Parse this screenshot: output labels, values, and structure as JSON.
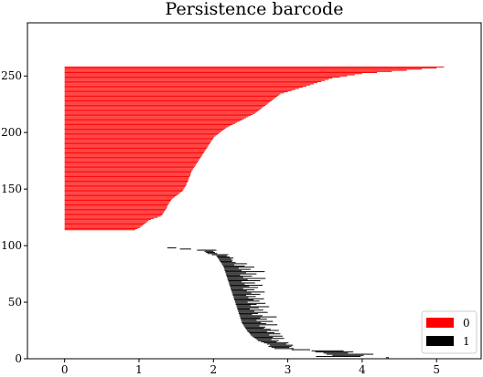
{
  "chart_data": {
    "type": "barcode",
    "title": "Persistence barcode",
    "xlabel": "",
    "ylabel": "",
    "xlim": [
      -0.5,
      5.6
    ],
    "ylim": [
      0,
      297
    ],
    "xticks": [
      "0",
      "1",
      "2",
      "3",
      "4",
      "5"
    ],
    "yticks": [
      "0",
      "50",
      "100",
      "150",
      "200",
      "250"
    ],
    "legend_position": "lower-right",
    "series": [
      {
        "name": "0",
        "color": "#ff0000",
        "start": 0,
        "index_start": 114,
        "deaths": [
          0.95,
          0.98,
          1.01,
          1.03,
          1.05,
          1.07,
          1.09,
          1.11,
          1.13,
          1.16,
          1.2,
          1.25,
          1.29,
          1.31,
          1.32,
          1.33,
          1.34,
          1.35,
          1.36,
          1.37,
          1.38,
          1.38,
          1.39,
          1.4,
          1.41,
          1.42,
          1.43,
          1.44,
          1.46,
          1.48,
          1.5,
          1.52,
          1.54,
          1.56,
          1.58,
          1.59,
          1.6,
          1.61,
          1.62,
          1.63,
          1.64,
          1.64,
          1.65,
          1.66,
          1.66,
          1.67,
          1.67,
          1.68,
          1.69,
          1.69,
          1.7,
          1.7,
          1.71,
          1.72,
          1.73,
          1.74,
          1.75,
          1.76,
          1.77,
          1.78,
          1.79,
          1.8,
          1.81,
          1.82,
          1.83,
          1.84,
          1.85,
          1.86,
          1.87,
          1.88,
          1.89,
          1.9,
          1.91,
          1.92,
          1.93,
          1.94,
          1.95,
          1.96,
          1.97,
          1.98,
          1.99,
          2.0,
          2.01,
          2.03,
          2.05,
          2.07,
          2.09,
          2.11,
          2.13,
          2.15,
          2.17,
          2.2,
          2.23,
          2.26,
          2.29,
          2.32,
          2.35,
          2.38,
          2.41,
          2.44,
          2.47,
          2.5,
          2.53,
          2.56,
          2.58,
          2.6,
          2.62,
          2.64,
          2.66,
          2.68,
          2.7,
          2.72,
          2.74,
          2.76,
          2.78,
          2.8,
          2.82,
          2.84,
          2.86,
          2.88,
          2.9,
          2.95,
          3.0,
          3.05,
          3.1,
          3.15,
          3.2,
          3.25,
          3.3,
          3.35,
          3.4,
          3.45,
          3.5,
          3.55,
          3.6,
          3.7,
          3.8,
          3.9,
          4.0,
          4.2,
          4.4,
          4.6,
          4.8,
          5.0,
          5.1
        ]
      },
      {
        "name": "1",
        "color": "#000000",
        "bars": [
          [
            4.32,
            4.36
          ],
          [
            3.38,
            3.98
          ],
          [
            3.6,
            4.02
          ],
          [
            3.52,
            4.15
          ],
          [
            3.48,
            3.81
          ],
          [
            3.37,
            3.88
          ],
          [
            3.32,
            3.75
          ],
          [
            3.05,
            3.3
          ],
          [
            2.82,
            3.08
          ],
          [
            2.78,
            3.02
          ],
          [
            2.74,
            3.05
          ],
          [
            2.76,
            3.07
          ],
          [
            2.72,
            2.98
          ],
          [
            2.68,
            3.01
          ],
          [
            2.64,
            2.85
          ],
          [
            2.6,
            2.88
          ],
          [
            2.58,
            2.78
          ],
          [
            2.56,
            2.95
          ],
          [
            2.54,
            2.8
          ],
          [
            2.52,
            2.93
          ],
          [
            2.5,
            2.75
          ],
          [
            2.49,
            2.9
          ],
          [
            2.48,
            2.82
          ],
          [
            2.46,
            2.72
          ],
          [
            2.45,
            2.88
          ],
          [
            2.44,
            2.77
          ],
          [
            2.43,
            2.68
          ],
          [
            2.42,
            2.7
          ],
          [
            2.41,
            2.62
          ],
          [
            2.4,
            2.86
          ],
          [
            2.39,
            2.71
          ],
          [
            2.38,
            2.64
          ],
          [
            2.38,
            2.8
          ],
          [
            2.37,
            2.58
          ],
          [
            2.37,
            2.72
          ],
          [
            2.36,
            2.63
          ],
          [
            2.36,
            2.85
          ],
          [
            2.35,
            2.66
          ],
          [
            2.35,
            2.52
          ],
          [
            2.34,
            2.6
          ],
          [
            2.34,
            2.73
          ],
          [
            2.33,
            2.55
          ],
          [
            2.33,
            2.67
          ],
          [
            2.32,
            2.49
          ],
          [
            2.32,
            2.61
          ],
          [
            2.31,
            2.75
          ],
          [
            2.31,
            2.5
          ],
          [
            2.3,
            2.58
          ],
          [
            2.3,
            2.7
          ],
          [
            2.29,
            2.46
          ],
          [
            2.29,
            2.62
          ],
          [
            2.28,
            2.54
          ],
          [
            2.28,
            2.68
          ],
          [
            2.27,
            2.47
          ],
          [
            2.27,
            2.57
          ],
          [
            2.26,
            2.44
          ],
          [
            2.26,
            2.63
          ],
          [
            2.25,
            2.51
          ],
          [
            2.25,
            2.69
          ],
          [
            2.24,
            2.45
          ],
          [
            2.24,
            2.55
          ],
          [
            2.23,
            2.4
          ],
          [
            2.23,
            2.6
          ],
          [
            2.22,
            2.48
          ],
          [
            2.22,
            2.66
          ],
          [
            2.21,
            2.42
          ],
          [
            2.21,
            2.56
          ],
          [
            2.2,
            2.38
          ],
          [
            2.2,
            2.63
          ],
          [
            2.19,
            2.46
          ],
          [
            2.19,
            2.7
          ],
          [
            2.18,
            2.4
          ],
          [
            2.18,
            2.52
          ],
          [
            2.17,
            2.36
          ],
          [
            2.17,
            2.58
          ],
          [
            2.16,
            2.44
          ],
          [
            2.16,
            2.69
          ],
          [
            2.15,
            2.38
          ],
          [
            2.15,
            2.5
          ],
          [
            2.14,
            2.34
          ],
          [
            2.14,
            2.55
          ],
          [
            2.13,
            2.42
          ],
          [
            2.12,
            2.28
          ],
          [
            2.11,
            2.45
          ],
          [
            2.1,
            2.3
          ],
          [
            2.09,
            2.25
          ],
          [
            2.08,
            2.26
          ],
          [
            2.07,
            2.24
          ],
          [
            2.06,
            2.27
          ],
          [
            2.05,
            2.22
          ],
          [
            2.04,
            2.18
          ],
          [
            1.98,
            2.2
          ],
          [
            1.92,
            2.05
          ],
          [
            1.9,
            2.02
          ],
          [
            1.88,
            2.0
          ],
          [
            1.78,
            2.04
          ],
          [
            1.55,
            1.7
          ],
          [
            1.38,
            1.5
          ]
        ]
      }
    ]
  }
}
